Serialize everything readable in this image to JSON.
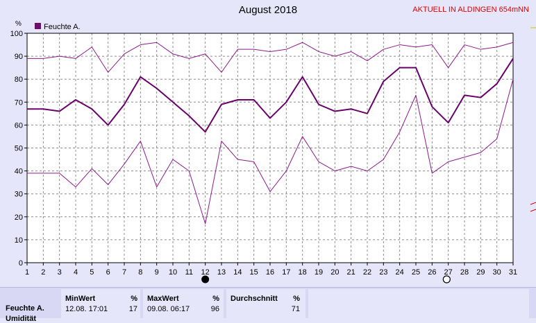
{
  "header": {
    "title": "August 2018",
    "station": "AKTUELL IN ALDINGEN 654mNN"
  },
  "chart_data": {
    "type": "line",
    "title": "August 2018",
    "ylabel": "%",
    "ylim": [
      0,
      100
    ],
    "yticks": [
      "0",
      "10",
      "20",
      "30",
      "40",
      "50",
      "60",
      "70",
      "80",
      "90",
      "100"
    ],
    "xlim": [
      1,
      31
    ],
    "categories": [
      "1",
      "2",
      "3",
      "4",
      "5",
      "6",
      "7",
      "8",
      "9",
      "10",
      "11",
      "12",
      "13",
      "14",
      "15",
      "16",
      "17",
      "18",
      "19",
      "20",
      "21",
      "22",
      "23",
      "24",
      "25",
      "26",
      "27",
      "28",
      "29",
      "30",
      "31"
    ],
    "legend": {
      "label": "Feuchte A.",
      "position": "top-left",
      "color": "#6a0f6a"
    },
    "grid": true,
    "series": [
      {
        "name": "Feuchte A.",
        "role": "max",
        "color": "#8b1a8b",
        "values": [
          89,
          89,
          90,
          89,
          94,
          83,
          91,
          95,
          96,
          91,
          89,
          91,
          83,
          93,
          93,
          92,
          93,
          96,
          92,
          90,
          92,
          88,
          93,
          95,
          94,
          95,
          85,
          95,
          93,
          94,
          96
        ]
      },
      {
        "name": "Feuchte A.",
        "role": "avg",
        "color": "#6a006a",
        "values": [
          67,
          67,
          66,
          71,
          67,
          60,
          69,
          81,
          76,
          70,
          64,
          57,
          69,
          71,
          71,
          63,
          70,
          81,
          69,
          66,
          67,
          65,
          79,
          85,
          85,
          68,
          61,
          73,
          72,
          78,
          89
        ]
      },
      {
        "name": "Feuchte A.",
        "role": "min",
        "color": "#8b1a8b",
        "values": [
          39,
          39,
          39,
          33,
          41,
          34,
          43,
          53,
          33,
          45,
          40,
          17,
          53,
          45,
          44,
          31,
          40,
          55,
          44,
          40,
          42,
          40,
          45,
          57,
          73,
          39,
          44,
          46,
          48,
          54,
          80
        ]
      }
    ],
    "markers": [
      {
        "type": "full-moon",
        "day": 12
      },
      {
        "type": "new-moon",
        "day": 26.9
      }
    ]
  },
  "summary": {
    "row_label": "Feuchte A.",
    "row_label_cut": "Umidität",
    "min": {
      "header": "MinWert",
      "unit": "%",
      "time": "12.08.  17:01",
      "value": "17"
    },
    "max": {
      "header": "MaxWert",
      "unit": "%",
      "time": "09.08.  06:17",
      "value": "96"
    },
    "avg": {
      "header": "Durchschnitt",
      "unit": "%",
      "value": "71"
    }
  }
}
